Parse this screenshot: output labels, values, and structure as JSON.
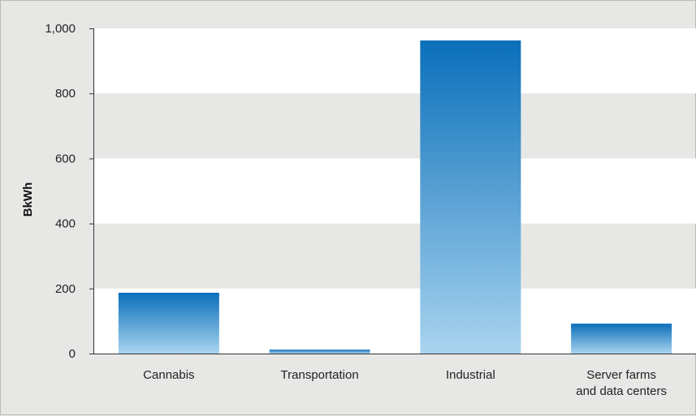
{
  "chart_data": {
    "type": "bar",
    "categories": [
      [
        "Cannabis"
      ],
      [
        "Transportation"
      ],
      [
        "Industrial"
      ],
      [
        "Server farms",
        "and data centers"
      ]
    ],
    "values": [
      187,
      12,
      963,
      92
    ],
    "title": "",
    "xlabel": "",
    "ylabel": "BkWh",
    "ylim": [
      0,
      1000
    ],
    "yticks": [
      {
        "value": 0,
        "label": "0"
      },
      {
        "value": 200,
        "label": "200"
      },
      {
        "value": 400,
        "label": "400"
      },
      {
        "value": 600,
        "label": "600"
      },
      {
        "value": 800,
        "label": "800"
      },
      {
        "value": 1000,
        "label": "1,000"
      }
    ],
    "grid": "alternating horizontal bands",
    "colors": {
      "background": "#e7e8e6",
      "band": "#ffffff",
      "bar_top": "#0a6fba",
      "bar_bottom": "#a9d4ef",
      "axis": "#333333"
    }
  }
}
